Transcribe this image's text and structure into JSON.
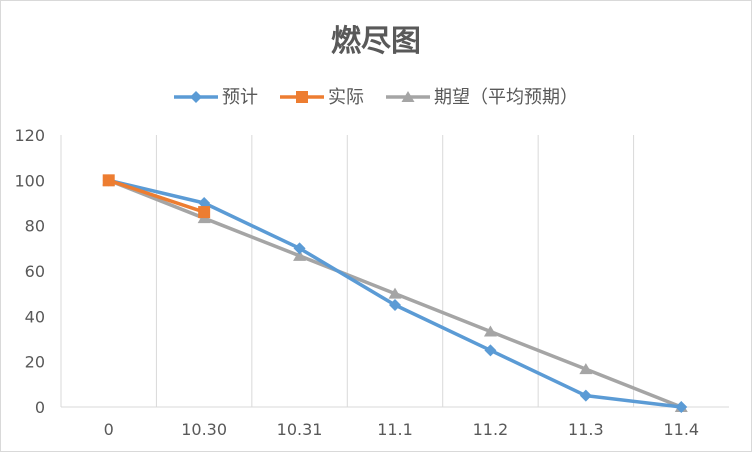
{
  "chart_data": {
    "type": "line",
    "title": "燃尽图",
    "categories": [
      "0",
      "10.30",
      "10.31",
      "11.1",
      "11.2",
      "11.3",
      "11.4"
    ],
    "ylim": [
      0,
      120
    ],
    "yticks": [
      0,
      20,
      40,
      60,
      80,
      100,
      120
    ],
    "grid": "vertical",
    "legend": "top",
    "series": [
      {
        "name": "预计",
        "color": "#5B9BD5",
        "marker": "diamond",
        "values": [
          100,
          90,
          70,
          45,
          25,
          5,
          0
        ]
      },
      {
        "name": "实际",
        "color": "#ED7D31",
        "marker": "square",
        "values": [
          100,
          86,
          null,
          null,
          null,
          null,
          null
        ]
      },
      {
        "name": "期望（平均预期）",
        "color": "#A5A5A5",
        "marker": "triangle",
        "values": [
          100,
          83.3,
          66.7,
          50,
          33.3,
          16.7,
          0
        ]
      }
    ]
  }
}
